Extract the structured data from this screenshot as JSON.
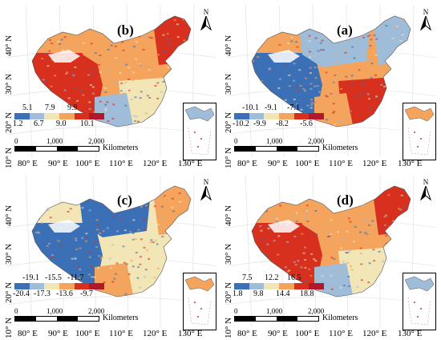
{
  "colors": {
    "low": "#3b6fb6",
    "mid_low": "#9fbcd8",
    "mid": "#f2e6b6",
    "mid_high": "#f4a45c",
    "high": "#d7301f",
    "background": "#ffffff"
  },
  "panels": [
    {
      "id": "b",
      "label": "(b)",
      "legend_top": [
        "5.1",
        "7.9",
        "9.9"
      ],
      "legend_bottom": [
        "1.2",
        "6.7",
        "9.0",
        "10.1"
      ],
      "pattern": "west_high"
    },
    {
      "id": "a",
      "label": "(a)",
      "legend_top": [
        "-10.1",
        "-9.1",
        "-7.1"
      ],
      "legend_bottom": [
        "-10.2",
        "-9.9",
        "-8.2",
        "-5.6"
      ],
      "pattern": "east_high"
    },
    {
      "id": "c",
      "label": "(c)",
      "legend_top": [
        "-19.1",
        "-15.5",
        "-11.7"
      ],
      "legend_bottom": [
        "-20.4",
        "-17.3",
        "-13.6",
        "-9.7"
      ],
      "pattern": "west_low"
    },
    {
      "id": "d",
      "label": "(d)",
      "legend_top": [
        "7.5",
        "12.2",
        "16.5"
      ],
      "legend_bottom": [
        "1.8",
        "9.8",
        "14.4",
        "18.8"
      ],
      "pattern": "west_high"
    }
  ],
  "axes": {
    "lat_labels": [
      "40° N",
      "30° N",
      "20° N",
      "10° N"
    ],
    "lon_labels": [
      "80° E",
      "90° E",
      "100° E",
      "110° E",
      "120° E",
      "130° E"
    ]
  },
  "scale_bar": {
    "ticks": [
      "0",
      "1,000",
      "2,000"
    ],
    "unit": "Kilometers"
  },
  "north_arrow": {
    "letter": "N",
    "icon": "north-arrow-icon"
  }
}
